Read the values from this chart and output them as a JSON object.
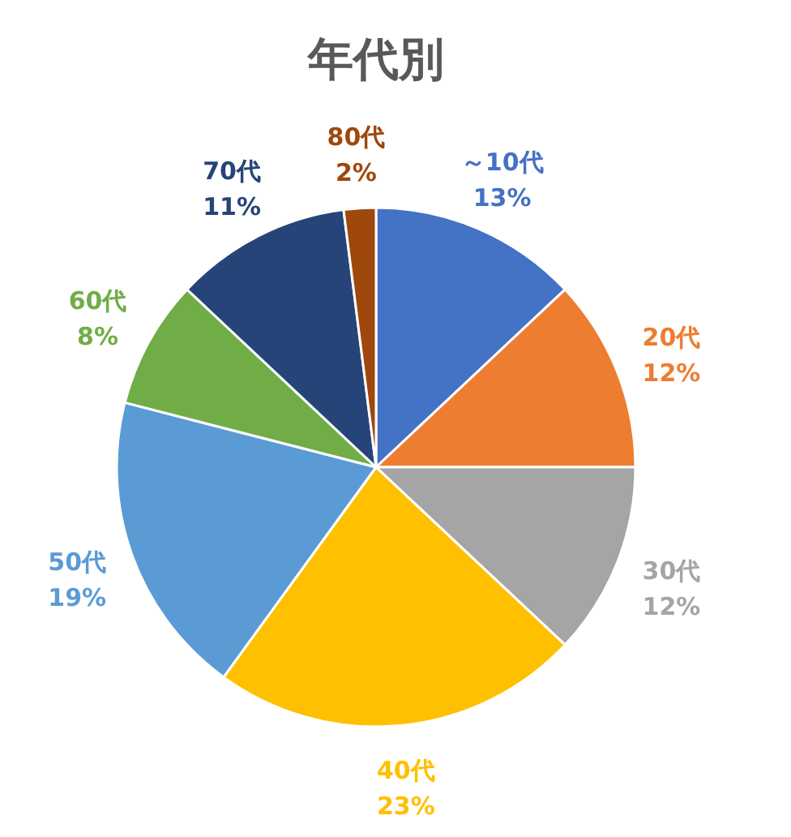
{
  "chart_data": {
    "type": "pie",
    "title": "年代別",
    "categories": [
      "～10代",
      "20代",
      "30代",
      "40代",
      "50代",
      "60代",
      "70代",
      "80代"
    ],
    "values": [
      13,
      12,
      12,
      23,
      19,
      8,
      11,
      2
    ],
    "value_labels": [
      "13%",
      "12%",
      "12%",
      "23%",
      "19%",
      "8%",
      "11%",
      "2%"
    ],
    "colors": [
      "#4472c4",
      "#ed7d31",
      "#a5a5a5",
      "#ffc000",
      "#5b9bd5",
      "#70ad47",
      "#264478",
      "#9e480e"
    ],
    "legend": false
  }
}
